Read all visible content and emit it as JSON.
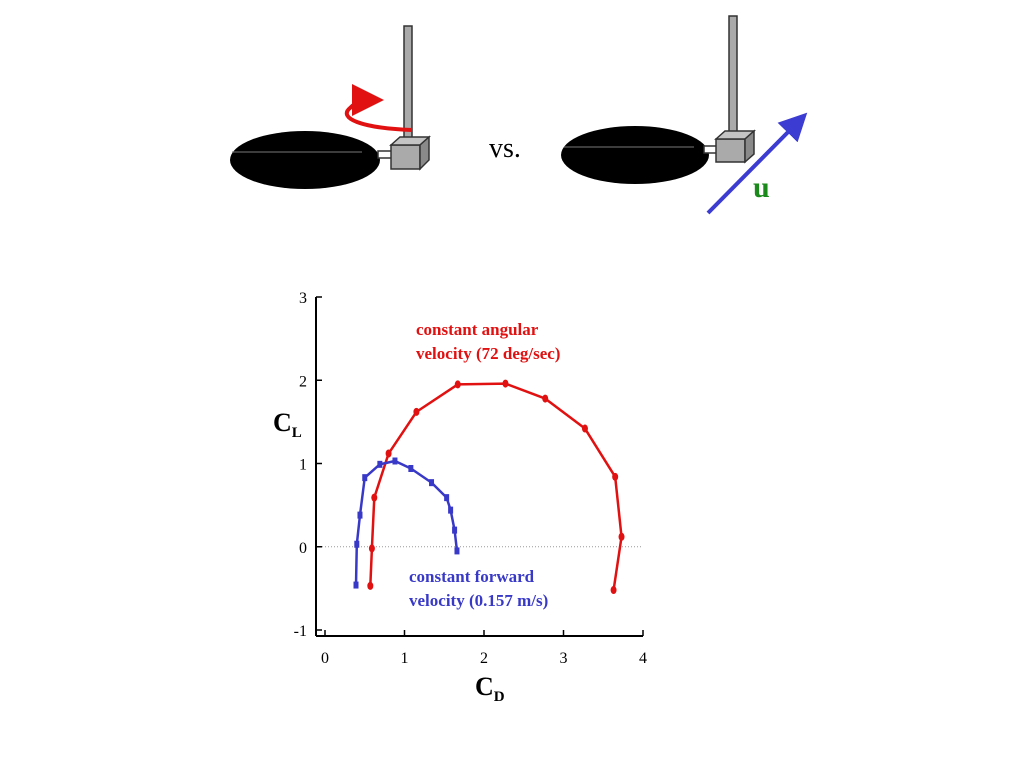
{
  "illustration": {
    "left_motion": "rotation",
    "right_motion": "translation",
    "vs_text": "vs.",
    "velocity_label": "u",
    "colors": {
      "rotation_arrow": "#e11111",
      "velocity_arrow": "#3c3cd2",
      "velocity_label": "#1a8a1a",
      "blade": "#000000",
      "hub": "#aaaaaa"
    }
  },
  "chart_data": {
    "type": "line",
    "xlabel": "C",
    "xlabel_sub": "D",
    "ylabel": "C",
    "ylabel_sub": "L",
    "xlim": [
      0,
      4
    ],
    "ylim": [
      -1,
      3
    ],
    "xticks": [
      "0",
      "1",
      "2",
      "3",
      "4"
    ],
    "yticks": [
      "-1",
      "0",
      "1",
      "2",
      "3"
    ],
    "grid": false,
    "zero_line": true,
    "series": [
      {
        "name": "constant angular velocity (72 deg/sec)",
        "color": "#e11111",
        "marker": "circle",
        "x": [
          0.57,
          0.59,
          0.62,
          0.8,
          1.15,
          1.67,
          2.27,
          2.77,
          3.27,
          3.65,
          3.73,
          3.63
        ],
        "y": [
          -0.47,
          -0.02,
          0.59,
          1.12,
          1.62,
          1.95,
          1.96,
          1.78,
          1.42,
          0.84,
          0.12,
          -0.52
        ]
      },
      {
        "name": "constant forward velocity (0.157 m/s)",
        "color": "#3939c8",
        "marker": "square",
        "x": [
          0.39,
          0.4,
          0.44,
          0.5,
          0.69,
          0.88,
          1.08,
          1.34,
          1.53,
          1.58,
          1.63,
          1.66
        ],
        "y": [
          -0.46,
          0.03,
          0.38,
          0.83,
          0.99,
          1.03,
          0.94,
          0.77,
          0.59,
          0.44,
          0.2,
          -0.05
        ]
      }
    ]
  },
  "annotations": {
    "red_line1": "constant angular",
    "red_line2": "velocity (72 deg/sec)",
    "blue_line1": "constant forward",
    "blue_line2": "velocity (0.157 m/s)"
  }
}
